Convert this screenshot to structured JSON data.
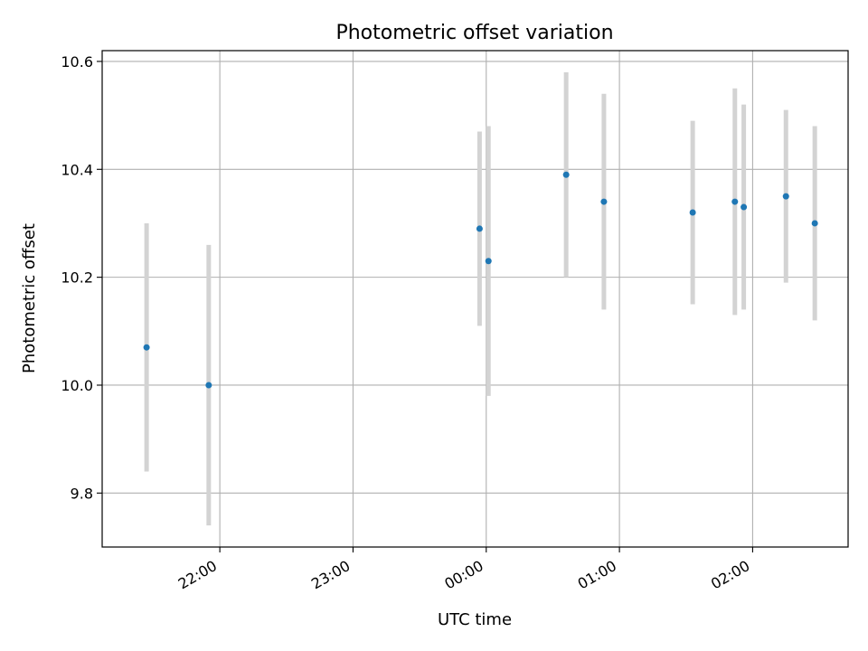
{
  "chart_data": {
    "type": "scatter",
    "title": "Photometric offset variation",
    "xlabel": "UTC time",
    "ylabel": "Photometric offset",
    "x_type": "time",
    "xlim": [
      "21:07",
      "02:43"
    ],
    "ylim": [
      9.7,
      10.62
    ],
    "x_ticks": [
      "22:00",
      "23:00",
      "00:00",
      "01:00",
      "02:00"
    ],
    "y_ticks": [
      "9.8",
      "10.0",
      "10.2",
      "10.4",
      "10.6"
    ],
    "grid": true,
    "legend": "none",
    "marker_color": "#1f77b4",
    "errorbar_color": "#d3d3d3",
    "points": [
      {
        "time": "21:27",
        "y": 10.07,
        "err": 0.23
      },
      {
        "time": "21:55",
        "y": 10.0,
        "err": 0.26
      },
      {
        "time": "23:57",
        "y": 10.29,
        "err": 0.18
      },
      {
        "time": "00:01",
        "y": 10.23,
        "err": 0.25
      },
      {
        "time": "00:36",
        "y": 10.39,
        "err": 0.19
      },
      {
        "time": "00:53",
        "y": 10.34,
        "err": 0.2
      },
      {
        "time": "01:33",
        "y": 10.32,
        "err": 0.17
      },
      {
        "time": "01:52",
        "y": 10.34,
        "err": 0.21
      },
      {
        "time": "01:56",
        "y": 10.33,
        "err": 0.19
      },
      {
        "time": "02:15",
        "y": 10.35,
        "err": 0.16
      },
      {
        "time": "02:28",
        "y": 10.3,
        "err": 0.18
      }
    ]
  }
}
